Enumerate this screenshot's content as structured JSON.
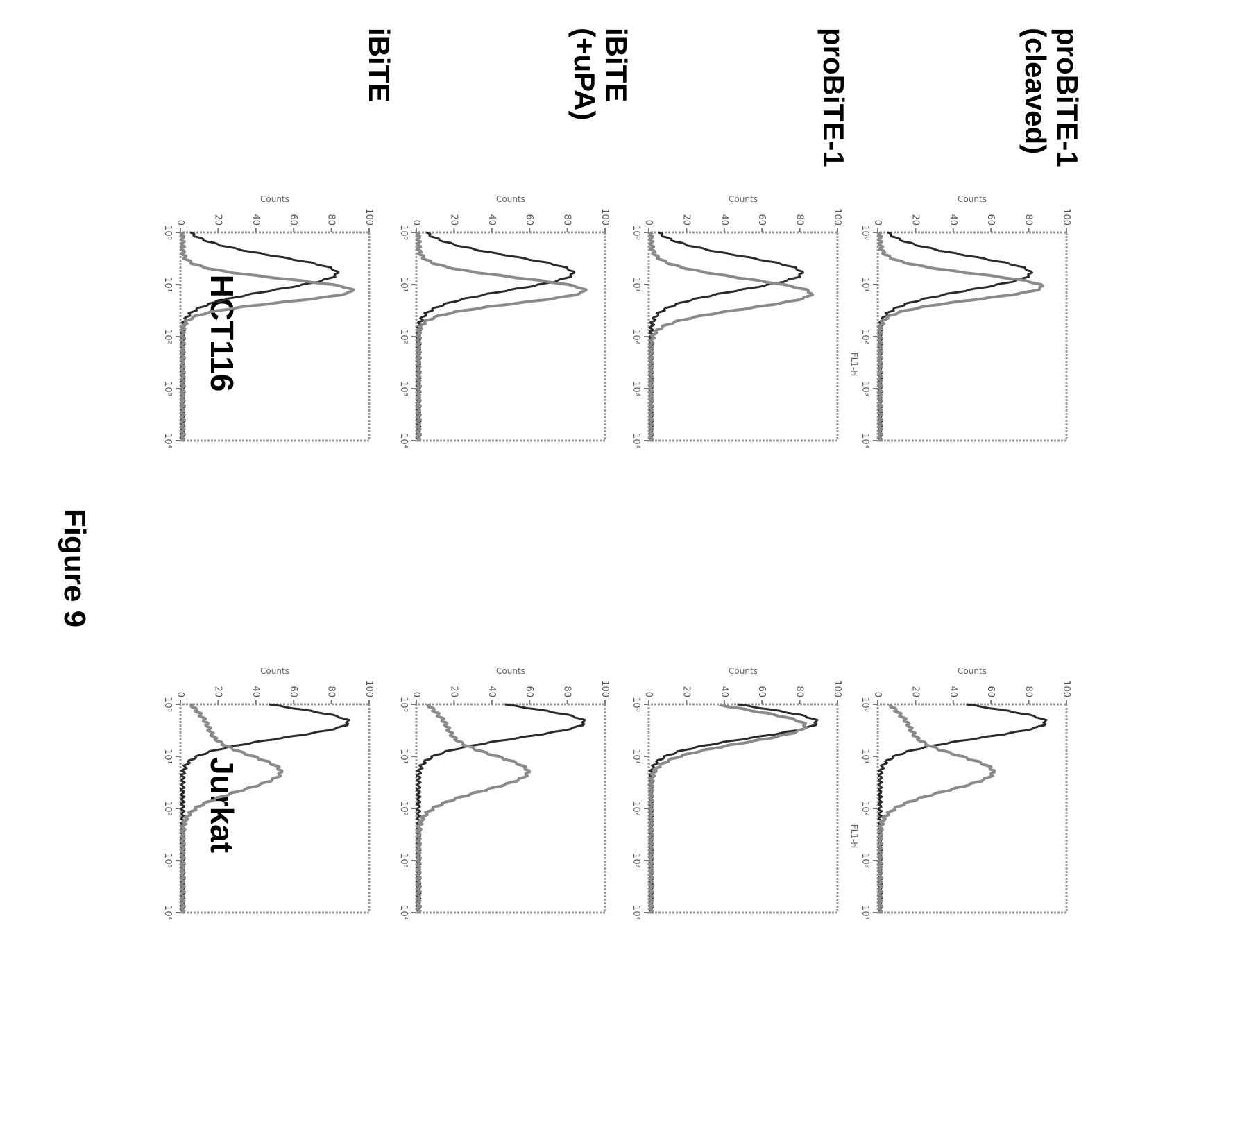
{
  "figure_title": "Figure 9",
  "columns": [
    "HCT116",
    "Jurkat"
  ],
  "rows": [
    {
      "lines": [
        "iBiTE"
      ]
    },
    {
      "lines": [
        "iBiTE",
        "(+uPA)"
      ]
    },
    {
      "lines": [
        "proBiTE-1"
      ]
    },
    {
      "lines": [
        "proBiTE-1",
        "(cleaved)"
      ]
    }
  ],
  "colors": {
    "dark": "#2b2b2b",
    "light": "#8a8a8a",
    "frame": "#9a9a9a"
  },
  "chart_data": [
    {
      "type": "line",
      "row": 0,
      "col": 0,
      "xlabel": "",
      "ylabel": "Counts",
      "xscale": "log",
      "xlim": [
        1,
        10000
      ],
      "ylim": [
        0,
        100
      ],
      "x_ticks": [
        "10⁰",
        "10¹",
        "10²",
        "10³",
        "10⁴"
      ],
      "y_ticks": [
        "0",
        "20",
        "40",
        "60",
        "80",
        "100"
      ],
      "series": [
        {
          "peak_x": 6,
          "peak_y": 82,
          "width": 0.32,
          "line": "dark"
        },
        {
          "peak_x": 13,
          "peak_y": 90,
          "width": 0.22,
          "line": "light"
        }
      ]
    },
    {
      "type": "line",
      "row": 0,
      "col": 1,
      "xlabel": "",
      "ylabel": "Counts",
      "xscale": "log",
      "xlim": [
        1,
        10000
      ],
      "ylim": [
        0,
        100
      ],
      "x_ticks": [
        "10⁰",
        "10¹",
        "10²",
        "10³",
        "10⁴"
      ],
      "y_ticks": [
        "0",
        "20",
        "40",
        "60",
        "80",
        "100"
      ],
      "series": [
        {
          "peak_x": 2.2,
          "peak_y": 88,
          "width": 0.3,
          "line": "dark"
        },
        {
          "peak_x": 20,
          "peak_y": 52,
          "width": 0.35,
          "shoulder": true,
          "line": "light"
        }
      ]
    },
    {
      "type": "line",
      "row": 1,
      "col": 0,
      "xlabel": "",
      "ylabel": "Counts",
      "xscale": "log",
      "xlim": [
        1,
        10000
      ],
      "ylim": [
        0,
        100
      ],
      "x_ticks": [
        "10⁰",
        "10¹",
        "10²",
        "10³",
        "10⁴"
      ],
      "y_ticks": [
        "0",
        "20",
        "40",
        "60",
        "80",
        "100"
      ],
      "series": [
        {
          "peak_x": 6,
          "peak_y": 82,
          "width": 0.32,
          "line": "dark"
        },
        {
          "peak_x": 13,
          "peak_y": 88,
          "width": 0.24,
          "line": "light"
        }
      ]
    },
    {
      "type": "line",
      "row": 1,
      "col": 1,
      "xlabel": "",
      "ylabel": "Counts",
      "xscale": "log",
      "xlim": [
        1,
        10000
      ],
      "ylim": [
        0,
        100
      ],
      "x_ticks": [
        "10⁰",
        "10¹",
        "10²",
        "10³",
        "10⁴"
      ],
      "y_ticks": [
        "0",
        "20",
        "40",
        "60",
        "80",
        "100"
      ],
      "series": [
        {
          "peak_x": 2.2,
          "peak_y": 88,
          "width": 0.3,
          "line": "dark"
        },
        {
          "peak_x": 20,
          "peak_y": 58,
          "width": 0.35,
          "shoulder": true,
          "line": "light"
        }
      ]
    },
    {
      "type": "line",
      "row": 2,
      "col": 0,
      "xlabel": "",
      "ylabel": "Counts",
      "xscale": "log",
      "xlim": [
        1,
        10000
      ],
      "ylim": [
        0,
        100
      ],
      "x_ticks": [
        "10⁰",
        "10¹",
        "10²",
        "10³",
        "10⁴"
      ],
      "y_ticks": [
        "0",
        "20",
        "40",
        "60",
        "80",
        "100"
      ],
      "series": [
        {
          "peak_x": 6,
          "peak_y": 80,
          "width": 0.32,
          "line": "dark"
        },
        {
          "peak_x": 15,
          "peak_y": 85,
          "width": 0.28,
          "line": "light"
        }
      ]
    },
    {
      "type": "line",
      "row": 2,
      "col": 1,
      "xlabel": "",
      "ylabel": "Counts",
      "xscale": "log",
      "xlim": [
        1,
        10000
      ],
      "ylim": [
        0,
        100
      ],
      "x_ticks": [
        "10⁰",
        "10¹",
        "10²",
        "10³",
        "10⁴"
      ],
      "y_ticks": [
        "0",
        "20",
        "40",
        "60",
        "80",
        "100"
      ],
      "series": [
        {
          "peak_x": 2.2,
          "peak_y": 88,
          "width": 0.3,
          "line": "dark"
        },
        {
          "peak_x": 2.6,
          "peak_y": 82,
          "width": 0.32,
          "line": "light"
        }
      ]
    },
    {
      "type": "line",
      "row": 3,
      "col": 0,
      "xlabel": "FL1-H",
      "ylabel": "Counts",
      "xscale": "log",
      "xlim": [
        1,
        10000
      ],
      "ylim": [
        0,
        100
      ],
      "x_ticks": [
        "10⁰",
        "10¹",
        "10²",
        "10³",
        "10⁴"
      ],
      "y_ticks": [
        "0",
        "20",
        "40",
        "60",
        "80",
        "100"
      ],
      "series": [
        {
          "peak_x": 6,
          "peak_y": 80,
          "width": 0.32,
          "line": "dark"
        },
        {
          "peak_x": 11,
          "peak_y": 86,
          "width": 0.24,
          "line": "light"
        }
      ]
    },
    {
      "type": "line",
      "row": 3,
      "col": 1,
      "xlabel": "FL1-H",
      "ylabel": "Counts",
      "xscale": "log",
      "xlim": [
        1,
        10000
      ],
      "ylim": [
        0,
        100
      ],
      "x_ticks": [
        "10⁰",
        "10¹",
        "10²",
        "10³",
        "10⁴"
      ],
      "y_ticks": [
        "0",
        "20",
        "40",
        "60",
        "80",
        "100"
      ],
      "series": [
        {
          "peak_x": 2.2,
          "peak_y": 88,
          "width": 0.3,
          "line": "dark"
        },
        {
          "peak_x": 20,
          "peak_y": 60,
          "width": 0.35,
          "shoulder": true,
          "line": "light"
        }
      ]
    }
  ]
}
